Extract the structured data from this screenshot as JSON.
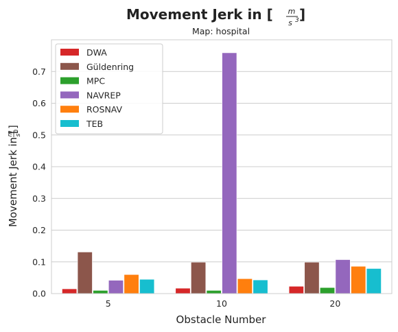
{
  "chart_data": {
    "type": "bar",
    "title": "Movement Jerk in [",
    "title_unit_numerator": "m",
    "title_unit_denominator": "s",
    "title_unit_power": "3",
    "title_close": "]",
    "subtitle": "Map: hospital",
    "xlabel": "Obstacle Number",
    "ylabel": "Movement Jerk in [",
    "ylabel_close": "]",
    "categories": [
      "5",
      "10",
      "20"
    ],
    "ylim": [
      0,
      0.8
    ],
    "yticks": [
      0.0,
      0.1,
      0.2,
      0.3,
      0.4,
      0.5,
      0.6,
      0.7
    ],
    "ytick_labels": [
      "0.0",
      "0.1",
      "0.2",
      "0.3",
      "0.4",
      "0.5",
      "0.6",
      "0.7"
    ],
    "grid": true,
    "legend_position": "top-left",
    "series": [
      {
        "name": "DWA",
        "color": "#d62728",
        "values": [
          0.015,
          0.017,
          0.023
        ]
      },
      {
        "name": "Güldenring",
        "color": "#8c564b",
        "values": [
          0.131,
          0.099,
          0.099
        ]
      },
      {
        "name": "MPC",
        "color": "#2ca02c",
        "values": [
          0.01,
          0.01,
          0.019
        ]
      },
      {
        "name": "NAVREP",
        "color": "#9467bd",
        "values": [
          0.042,
          0.759,
          0.107
        ]
      },
      {
        "name": "ROSNAV",
        "color": "#ff7f0e",
        "values": [
          0.06,
          0.047,
          0.086
        ]
      },
      {
        "name": "TEB",
        "color": "#17becf",
        "values": [
          0.045,
          0.043,
          0.079
        ]
      }
    ]
  }
}
